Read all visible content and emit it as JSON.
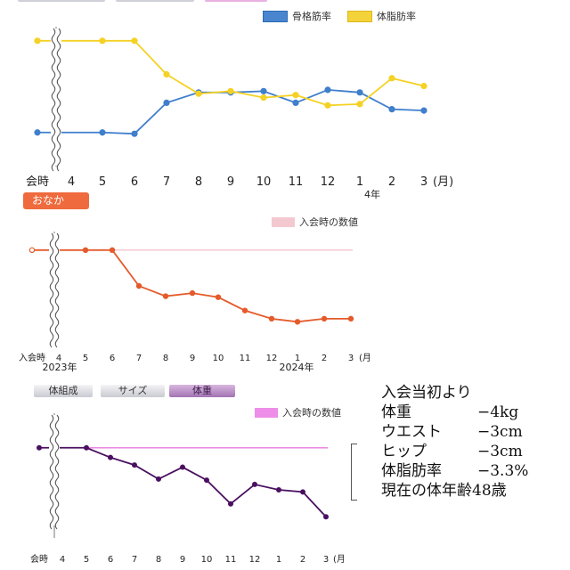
{
  "chart1": {
    "legend": [
      {
        "label": "骨格筋率",
        "color": "#4a86cf"
      },
      {
        "label": "体脂肪率",
        "color": "#f4d23a"
      }
    ],
    "x_labels": [
      "会時",
      "4",
      "5",
      "6",
      "7",
      "8",
      "9",
      "10",
      "11",
      "12",
      "1",
      "2",
      "3"
    ],
    "x_suffix": "(月)",
    "year_label": "4年"
  },
  "chart2": {
    "tab_label": "おなか",
    "legend_label": "入会時の数値",
    "legend_color": "#f3c9cf",
    "x_labels": [
      "入会時",
      "4",
      "5",
      "6",
      "7",
      "8",
      "9",
      "10",
      "11",
      "12",
      "1",
      "2",
      "3"
    ],
    "x_suffix": "(月",
    "year_labels": [
      "2023年",
      "2024年"
    ]
  },
  "chart3": {
    "tabs": [
      {
        "label": "体組成",
        "active": false
      },
      {
        "label": "サイズ",
        "active": false
      },
      {
        "label": "体重",
        "active": true
      }
    ],
    "legend_label": "入会時の数値",
    "legend_color": "#ee8ee8",
    "x_labels": [
      "会時",
      "4",
      "5",
      "6",
      "7",
      "8",
      "9",
      "10",
      "11",
      "12",
      "1",
      "2",
      "3"
    ],
    "x_suffix": "(月"
  },
  "notes": {
    "heading": "入会当初より",
    "rows": [
      {
        "label": "体重",
        "value": "−4kg"
      },
      {
        "label": "ウエスト",
        "value": "−3cm"
      },
      {
        "label": "ヒップ",
        "value": "−3cm"
      },
      {
        "label": "体脂肪率",
        "value": "−3.3%"
      }
    ],
    "footer": "現在の体年齢48歳"
  },
  "chart_data": [
    {
      "type": "line",
      "categories": [
        "会時",
        "4",
        "5",
        "6",
        "7",
        "8",
        "9",
        "10",
        "11",
        "12",
        "1",
        "2",
        "3"
      ],
      "xlabel": "(月)",
      "ylim": [
        0,
        100
      ],
      "grid": false,
      "legend_position": "top-right",
      "series": [
        {
          "name": "骨格筋率",
          "color": "#3f7fcc",
          "values": [
            25,
            null,
            25,
            24,
            48,
            56,
            56,
            57,
            48,
            58,
            56,
            43,
            42
          ]
        },
        {
          "name": "体脂肪率",
          "color": "#f5d123",
          "values": [
            96,
            null,
            96,
            96,
            70,
            55,
            57,
            52,
            54,
            46,
            47,
            67,
            61
          ]
        }
      ]
    },
    {
      "type": "line",
      "categories": [
        "入会時",
        "4",
        "5",
        "6",
        "7",
        "8",
        "9",
        "10",
        "11",
        "12",
        "1",
        "2",
        "3"
      ],
      "xlabel": "(月",
      "ylim": [
        0,
        100
      ],
      "grid": false,
      "reference_line": {
        "label": "入会時の数値",
        "value": 88
      },
      "series": [
        {
          "name": "",
          "color": "#e55a2b",
          "values": [
            88,
            null,
            88,
            88,
            53,
            43,
            46,
            42,
            29,
            21,
            18,
            21,
            21
          ]
        }
      ]
    },
    {
      "type": "line",
      "categories": [
        "会時",
        "4",
        "5",
        "6",
        "7",
        "8",
        "9",
        "10",
        "11",
        "12",
        "1",
        "2",
        "3"
      ],
      "xlabel": "(月",
      "ylim": [
        0,
        100
      ],
      "grid": false,
      "reference_line": {
        "label": "入会時の数値",
        "value": 82
      },
      "series": [
        {
          "name": "",
          "color": "#4a1060",
          "values": [
            82,
            null,
            82,
            73,
            66,
            53,
            64,
            52,
            30,
            48,
            43,
            41,
            18
          ]
        }
      ]
    }
  ]
}
